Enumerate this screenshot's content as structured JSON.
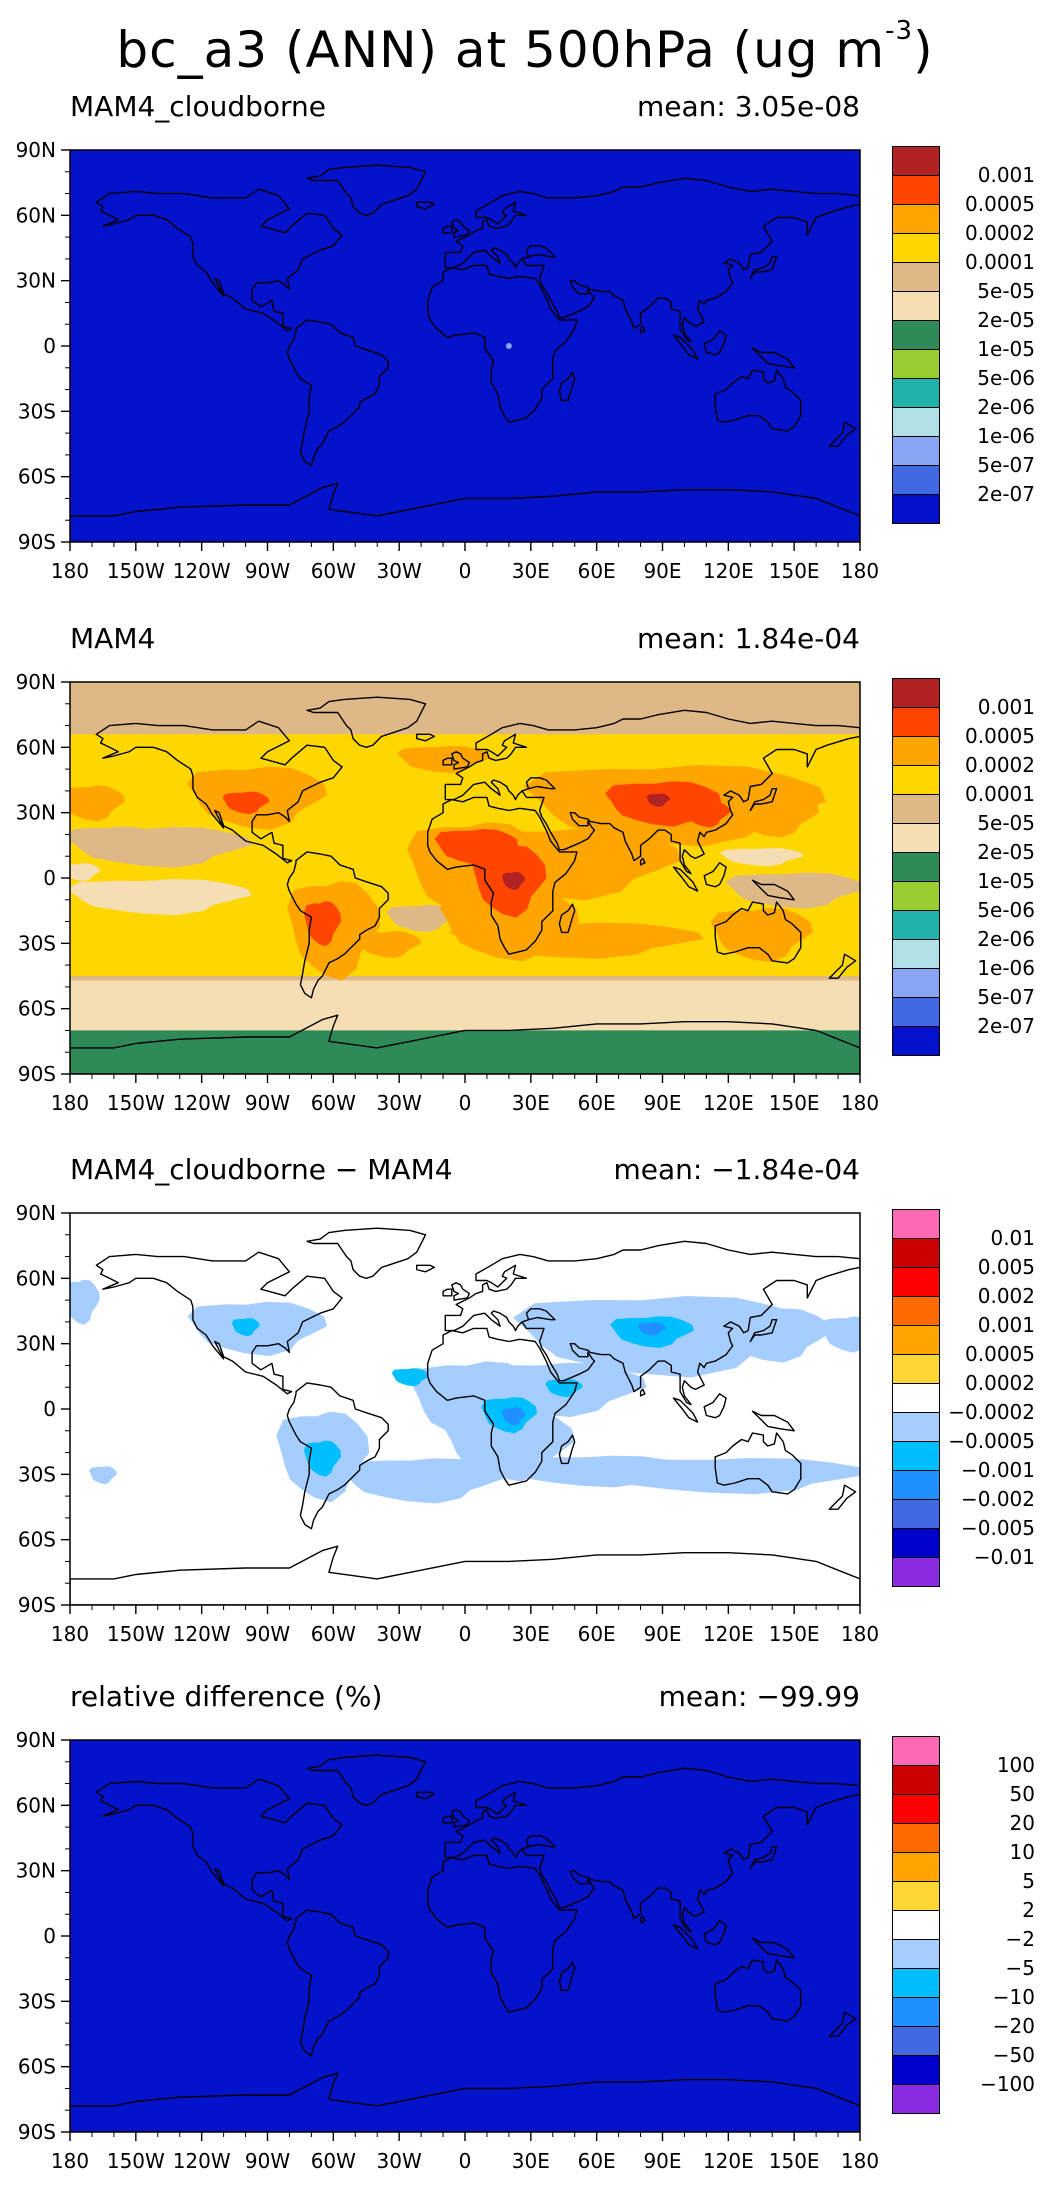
{
  "title": {
    "main": "bc_a3 (ANN) at 500hPa (ug m",
    "exponent": "-3",
    "close": ")"
  },
  "axes": {
    "lat_ticks": [
      "90N",
      "60N",
      "30N",
      "0",
      "30S",
      "60S",
      "90S"
    ],
    "lon_ticks": [
      "180",
      "150W",
      "120W",
      "90W",
      "60W",
      "30W",
      "0",
      "30E",
      "60E",
      "90E",
      "120E",
      "150E",
      "180"
    ]
  },
  "panels": [
    {
      "left_label": "MAM4_cloudborne",
      "right_label": "mean: 3.05e-08",
      "field": "uniform",
      "background": "#0412cc",
      "colorbar": {
        "labels": [
          "0.001",
          "0.0005",
          "0.0002",
          "0.0001",
          "5e-05",
          "2e-05",
          "1e-05",
          "5e-06",
          "2e-06",
          "1e-06",
          "5e-07",
          "2e-07"
        ],
        "colors": [
          "#b22222",
          "#ff4500",
          "#ffa500",
          "#ffd700",
          "#deb887",
          "#f5deb3",
          "#2e8b57",
          "#9acd32",
          "#20b2aa",
          "#b0e0e6",
          "#87a5f0",
          "#4169e1",
          "#0412cc"
        ]
      }
    },
    {
      "left_label": "MAM4",
      "right_label": "mean: 1.84e-04",
      "field": "concentration",
      "colorbar": {
        "labels": [
          "0.001",
          "0.0005",
          "0.0002",
          "0.0001",
          "5e-05",
          "2e-05",
          "1e-05",
          "5e-06",
          "2e-06",
          "1e-06",
          "5e-07",
          "2e-07"
        ],
        "colors": [
          "#b22222",
          "#ff4500",
          "#ffa500",
          "#ffd700",
          "#deb887",
          "#f5deb3",
          "#2e8b57",
          "#9acd32",
          "#20b2aa",
          "#b0e0e6",
          "#87a5f0",
          "#4169e1",
          "#0412cc"
        ]
      }
    },
    {
      "left_label": "MAM4_cloudborne − MAM4",
      "right_label": "mean: −1.84e-04",
      "field": "difference",
      "colorbar": {
        "labels": [
          "0.01",
          "0.005",
          "0.002",
          "0.001",
          "0.0005",
          "0.0002",
          "−0.0002",
          "−0.0005",
          "−0.001",
          "−0.002",
          "−0.005",
          "−0.01"
        ],
        "colors": [
          "#ff69b4",
          "#cc0000",
          "#ff0000",
          "#ff6a00",
          "#ffa500",
          "#ffd735",
          "#ffffff",
          "#a5cdff",
          "#00bfff",
          "#1e90ff",
          "#4169e1",
          "#0000cd",
          "#8a2be2"
        ]
      }
    },
    {
      "left_label": "relative difference (%)",
      "right_label": "mean: −99.99",
      "field": "uniform",
      "background": "#0412cc",
      "colorbar": {
        "labels": [
          "100",
          "50",
          "20",
          "10",
          "5",
          "2",
          "−2",
          "−5",
          "−10",
          "−20",
          "−50",
          "−100"
        ],
        "colors": [
          "#ff69b4",
          "#cc0000",
          "#ff0000",
          "#ff6a00",
          "#ffa500",
          "#ffd735",
          "#ffffff",
          "#a5cdff",
          "#00bfff",
          "#1e90ff",
          "#4169e1",
          "#0000cd",
          "#8a2be2"
        ]
      }
    }
  ]
}
